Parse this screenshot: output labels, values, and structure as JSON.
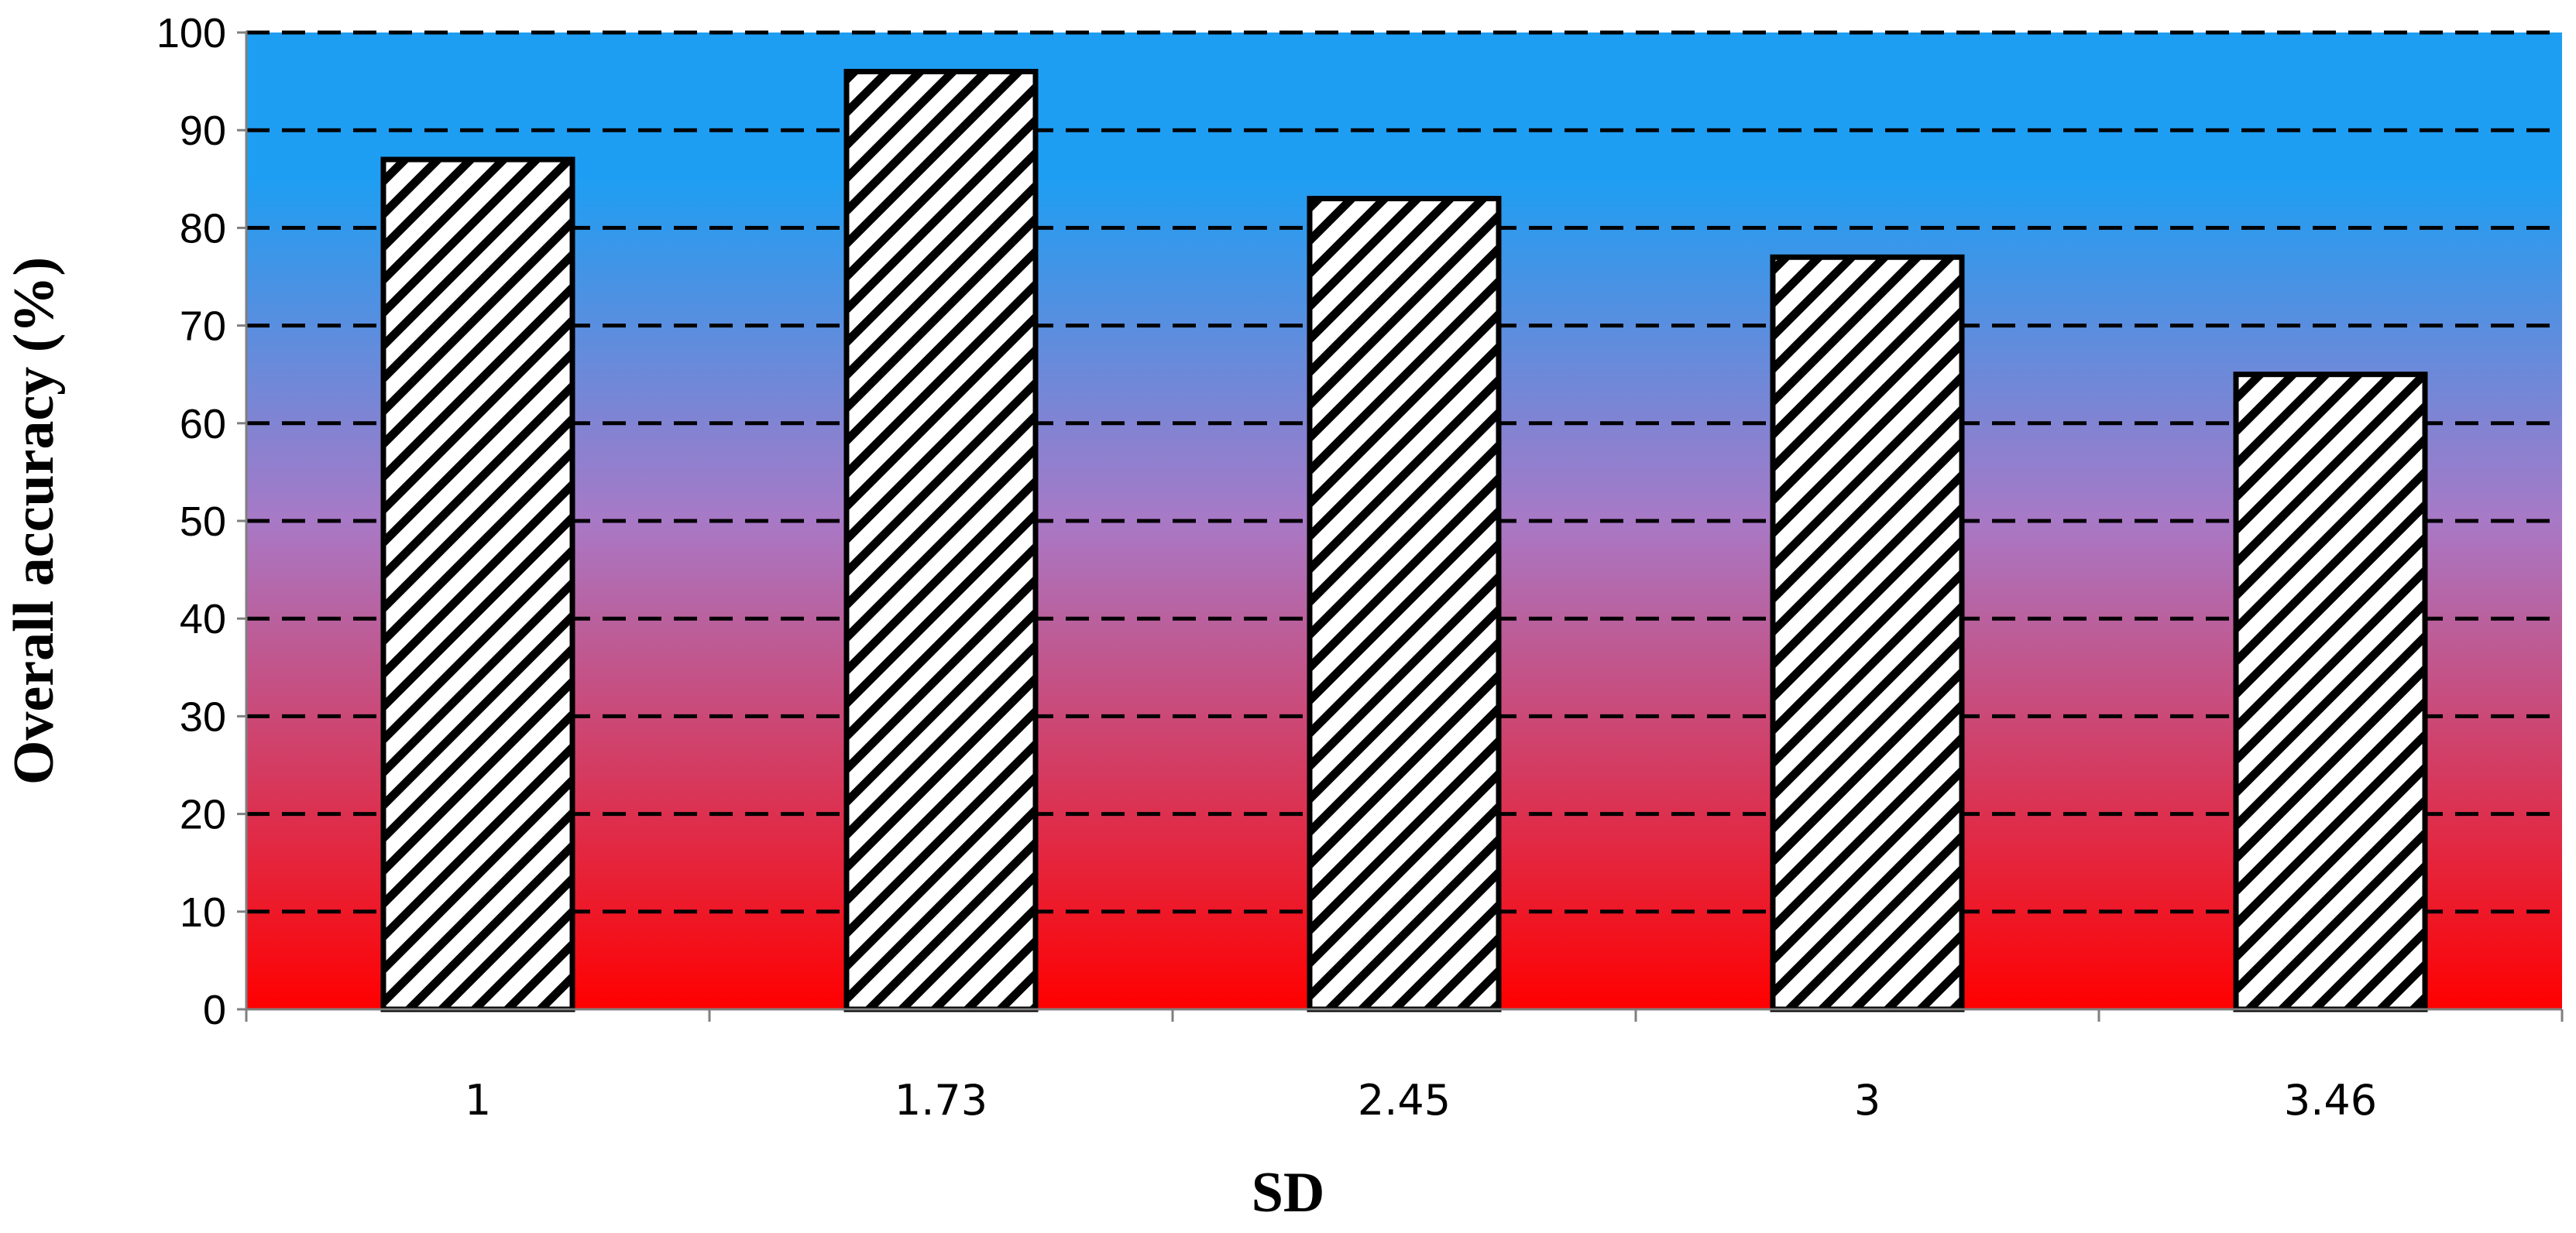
{
  "chart_data": {
    "type": "bar",
    "title": "",
    "xlabel": "SD",
    "ylabel": "Overall accuracy (%)",
    "categories": [
      "1",
      "1.73",
      "2.45",
      "3",
      "3.46"
    ],
    "values": [
      87,
      96,
      83,
      77,
      65
    ],
    "ylim": [
      0,
      100
    ],
    "yticks": [
      0,
      10,
      20,
      30,
      40,
      50,
      60,
      70,
      80,
      90,
      100
    ],
    "grid": "dashed horizontal",
    "bar_fill": "diagonal hatch",
    "colors": {
      "background_top": "#1e9ef2",
      "background_mid": "#a879c6",
      "background_bottom": "#ff0000",
      "bar_fill": "#ffffff",
      "bar_stroke": "#000000",
      "gridline": "#000000"
    }
  }
}
